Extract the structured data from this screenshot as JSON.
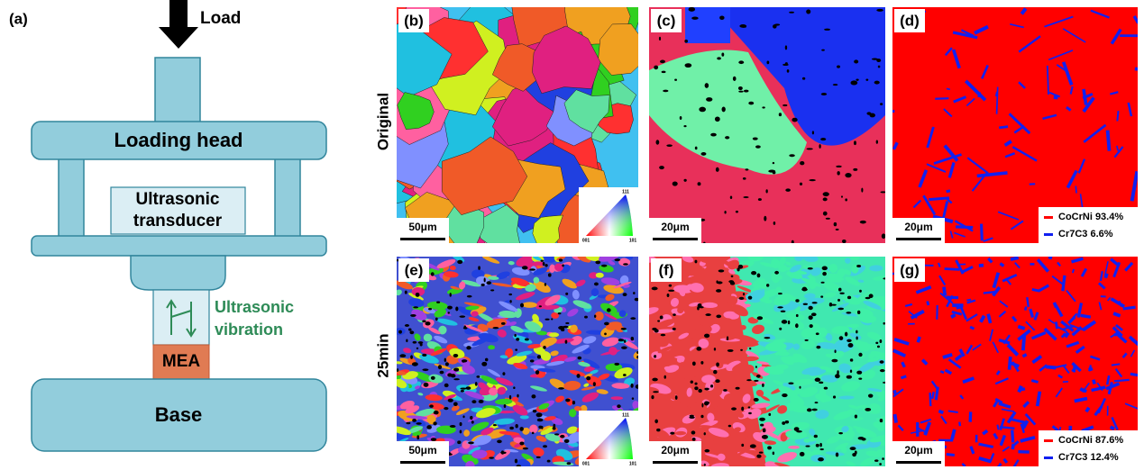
{
  "schematic": {
    "label": "(a)",
    "load": "Load",
    "loading_head": "Loading head",
    "transducer": [
      "Ultrasonic",
      "transducer"
    ],
    "vibration": [
      "Ultrasonic",
      "vibration"
    ],
    "sample": "MEA",
    "base": "Base"
  },
  "rows": [
    {
      "label": "Original",
      "panels": [
        {
          "label": "(b)",
          "scale_bar": "50μm",
          "ipf_labels": [
            "111",
            "001",
            "101"
          ]
        },
        {
          "label": "(c)",
          "scale_bar": "20μm"
        },
        {
          "label": "(d)",
          "scale_bar": "20μm",
          "legend": [
            "CoCrNi 93.4%",
            "Cr7C3  6.6%"
          ]
        }
      ]
    },
    {
      "label": "25min",
      "panels": [
        {
          "label": "(e)",
          "scale_bar": "50μm",
          "ipf_labels": [
            "111",
            "001",
            "101"
          ]
        },
        {
          "label": "(f)",
          "scale_bar": "20μm"
        },
        {
          "label": "(g)",
          "scale_bar": "20μm",
          "legend": [
            "CoCrNi 87.6%",
            "Cr7C3 12.4%"
          ]
        }
      ]
    }
  ]
}
